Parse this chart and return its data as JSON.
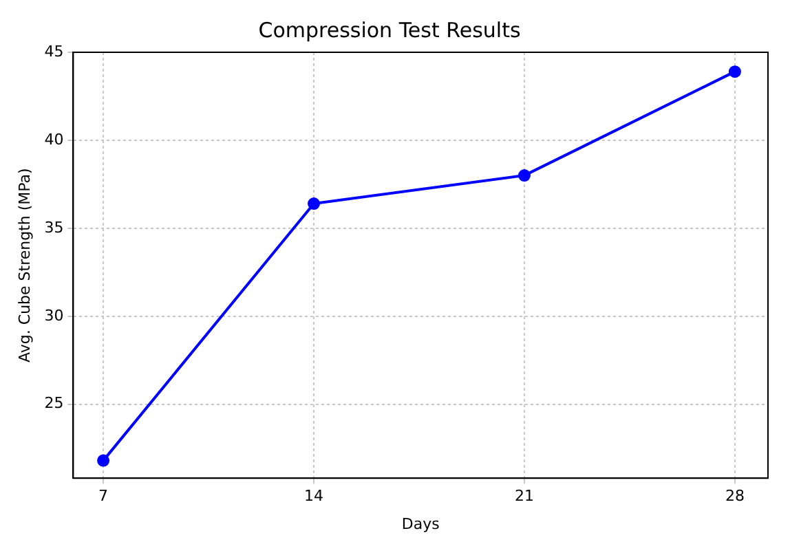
{
  "chart_data": {
    "type": "line",
    "title": "Compression Test Results",
    "xlabel": "Days",
    "ylabel": "Avg. Cube Strength (MPa)",
    "x": [
      7,
      14,
      21,
      28
    ],
    "series": [
      {
        "color": "#0000ff",
        "values": [
          21.8,
          36.4,
          38.0,
          43.9
        ]
      }
    ],
    "xlim": [
      6,
      29.1
    ],
    "xticks": [
      7,
      14,
      21,
      28
    ],
    "ylim": [
      20.8,
      45
    ],
    "yticks": [
      25,
      30,
      35,
      40,
      45
    ],
    "grid": true,
    "marker": "circle",
    "line_style": "solid",
    "legend": false
  }
}
